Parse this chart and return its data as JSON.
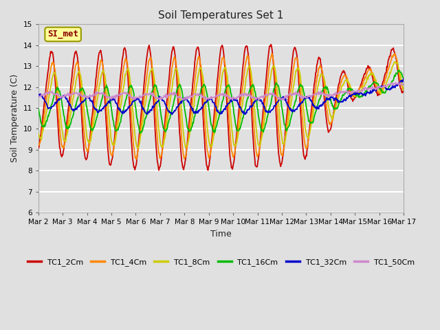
{
  "title": "Soil Temperatures Set 1",
  "xlabel": "Time",
  "ylabel": "Soil Temperature (C)",
  "ylim": [
    6.0,
    15.0
  ],
  "yticks": [
    6.0,
    7.0,
    8.0,
    9.0,
    10.0,
    11.0,
    12.0,
    13.0,
    14.0,
    15.0
  ],
  "bg_color": "#e0e0e0",
  "grid_color": "#ffffff",
  "series_colors": {
    "TC1_2Cm": "#cc0000",
    "TC1_4Cm": "#ff8800",
    "TC1_8Cm": "#cccc00",
    "TC1_16Cm": "#00bb00",
    "TC1_32Cm": "#0000cc",
    "TC1_50Cm": "#cc88cc"
  },
  "annotation_text": "SI_met",
  "annotation_color": "#880000",
  "annotation_bg": "#ffff99",
  "annotation_border": "#999900",
  "xtick_labels": [
    "Mar 2",
    "Mar 3",
    "Mar 4",
    "Mar 5",
    "Mar 6",
    "Mar 7",
    "Mar 8",
    "Mar 9",
    "Mar 10",
    "Mar 11",
    "Mar 12",
    "Mar 13",
    "Mar 14",
    "Mar 15",
    "Mar 16",
    "Mar 17"
  ],
  "figwidth": 6.4,
  "figheight": 4.8,
  "dpi": 100
}
